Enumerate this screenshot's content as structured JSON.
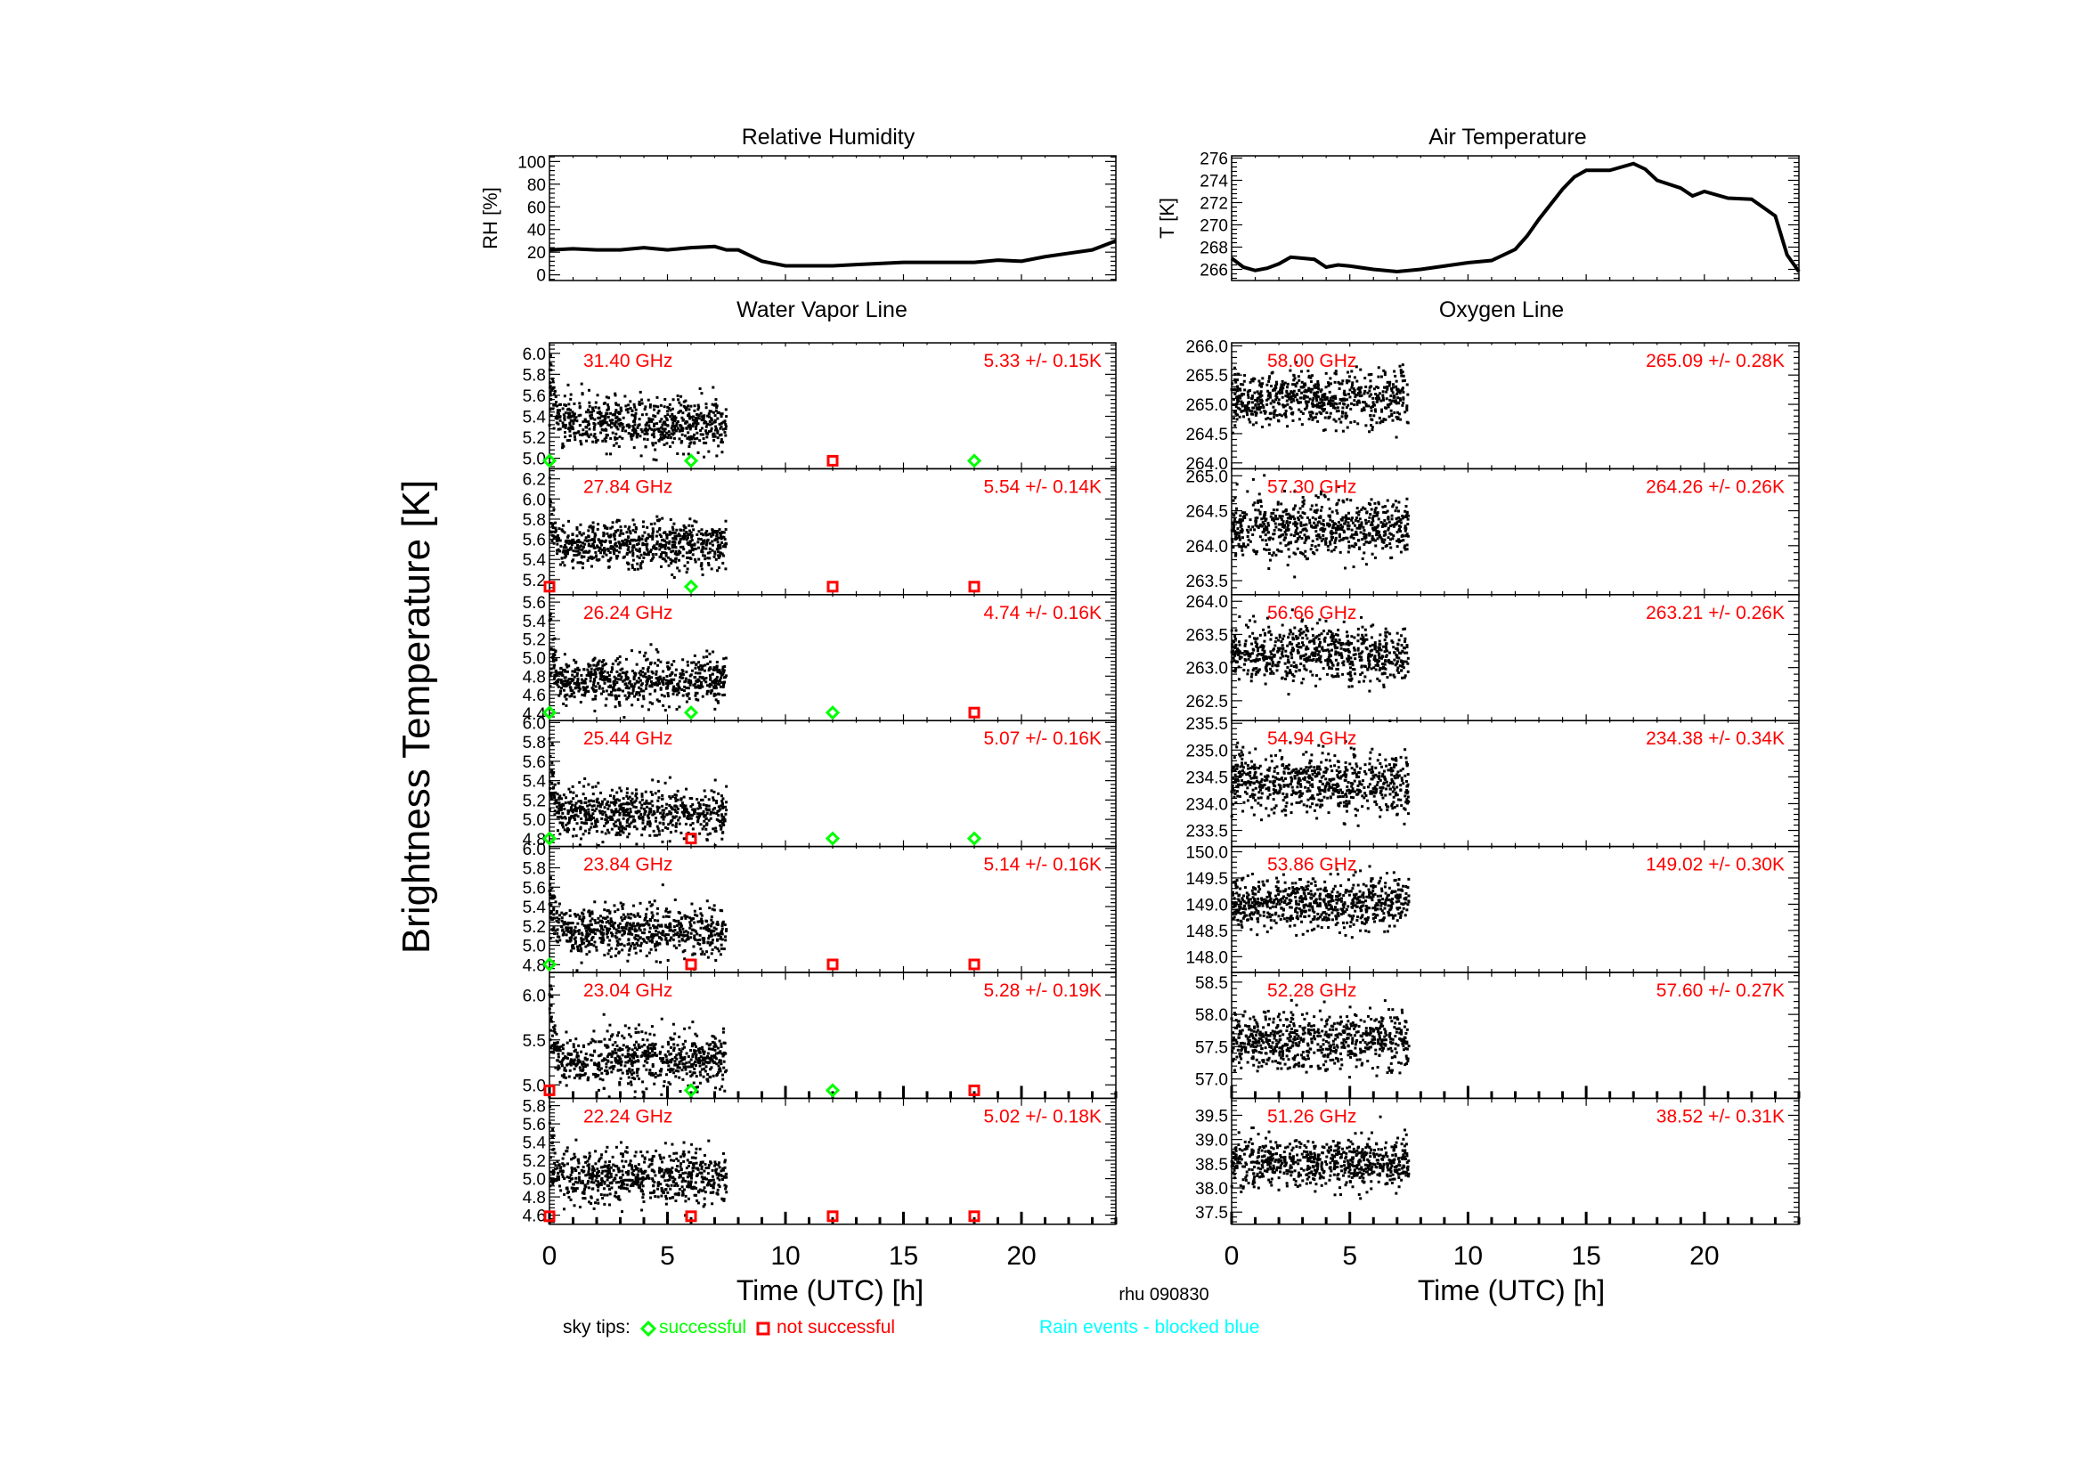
{
  "figure": {
    "ylabel_main": "Brightness Temperature [K]",
    "station_label": "rhu 090830",
    "legend": {
      "prefix": "sky tips:",
      "successful": "successful",
      "not_successful": "not successful",
      "rain": "Rain events - blocked blue"
    },
    "colors": {
      "text": "#000000",
      "annotation": "#ff0000",
      "success": "#00ff00",
      "fail": "#ff0000",
      "rain": "#00ffff",
      "points": "#000000"
    },
    "section_titles": {
      "left": "Water Vapor Line",
      "right": "Oxygen Line"
    }
  },
  "chart_data": [
    {
      "id": "rh",
      "type": "line",
      "title": "Relative Humidity",
      "ylabel": "RH [%]",
      "xlim": [
        0,
        24
      ],
      "ylim": [
        -5,
        105
      ],
      "yticks": [
        "0",
        "20",
        "40",
        "60",
        "80",
        "100"
      ],
      "ytick_values": [
        0,
        20,
        40,
        60,
        80,
        100
      ],
      "x": [
        0,
        1,
        2,
        3,
        4,
        5,
        6,
        7,
        7.5,
        8,
        9,
        10,
        11,
        12,
        13,
        14,
        15,
        16,
        17,
        18,
        19,
        20,
        21,
        22,
        23,
        24
      ],
      "values": [
        22,
        23,
        22,
        22,
        24,
        22,
        24,
        25,
        22,
        22,
        12,
        8,
        8,
        8,
        9,
        10,
        11,
        11,
        11,
        11,
        13,
        12,
        16,
        19,
        22,
        30
      ]
    },
    {
      "id": "temp",
      "type": "line",
      "title": "Air Temperature",
      "ylabel": "T [K]",
      "xlim": [
        0,
        24
      ],
      "ylim": [
        265,
        276.2
      ],
      "yticks": [
        "266",
        "268",
        "270",
        "272",
        "274",
        "276"
      ],
      "ytick_values": [
        266,
        268,
        270,
        272,
        274,
        276
      ],
      "x": [
        0,
        0.5,
        1,
        1.5,
        2,
        2.5,
        3,
        3.5,
        4,
        4.5,
        5,
        6,
        7,
        8,
        9,
        10,
        11,
        12,
        12.5,
        13,
        14,
        14.5,
        15,
        16,
        17,
        17.5,
        18,
        19,
        19.5,
        20,
        21,
        22,
        23,
        23.5,
        24
      ],
      "values": [
        267,
        266.2,
        265.9,
        266.1,
        266.5,
        267.1,
        267,
        266.9,
        266.2,
        266.4,
        266.3,
        266,
        265.8,
        266,
        266.3,
        266.6,
        266.8,
        267.8,
        269,
        270.5,
        273.2,
        274.3,
        274.9,
        274.9,
        275.5,
        275,
        274,
        273.3,
        272.6,
        273,
        272.4,
        272.3,
        270.8,
        267.3,
        265.8
      ]
    },
    {
      "id": "wv",
      "type": "scatter",
      "title": "Water Vapor Line",
      "xlabel": "Time (UTC) [h]",
      "xlim": [
        0,
        24
      ],
      "xticks": [
        "0",
        "5",
        "10",
        "15",
        "20"
      ],
      "xtick_values": [
        0,
        5,
        10,
        15,
        20
      ],
      "data_range_hours": [
        0,
        7.5
      ],
      "panels": [
        {
          "freq": "31.40 GHz",
          "stat": "5.33 +/-  0.15K",
          "mean": 5.33,
          "std": 0.15,
          "ylim": [
            4.9,
            6.1
          ],
          "yticks": [
            "5.0",
            "5.2",
            "5.4",
            "5.6",
            "5.8",
            "6.0"
          ],
          "ytick_values": [
            5.0,
            5.2,
            5.4,
            5.6,
            5.8,
            6.0
          ],
          "spike": 6.0,
          "skytips": [
            "success",
            "success",
            "fail",
            "success"
          ]
        },
        {
          "freq": "27.84 GHz",
          "stat": "5.54 +/-  0.14K",
          "mean": 5.54,
          "std": 0.14,
          "ylim": [
            5.05,
            6.3
          ],
          "yticks": [
            "5.2",
            "5.4",
            "5.6",
            "5.8",
            "6.0",
            "6.2"
          ],
          "ytick_values": [
            5.2,
            5.4,
            5.6,
            5.8,
            6.0,
            6.2
          ],
          "spike": 6.2,
          "skytips": [
            "fail",
            "success",
            "fail",
            "fail"
          ]
        },
        {
          "freq": "26.24 GHz",
          "stat": "4.74 +/-  0.16K",
          "mean": 4.74,
          "std": 0.16,
          "ylim": [
            4.32,
            5.68
          ],
          "yticks": [
            "4.4",
            "4.6",
            "4.8",
            "5.0",
            "5.2",
            "5.4",
            "5.6"
          ],
          "ytick_values": [
            4.4,
            4.6,
            4.8,
            5.0,
            5.2,
            5.4,
            5.6
          ],
          "spike": 5.6,
          "skytips": [
            "success",
            "success",
            "success",
            "fail"
          ]
        },
        {
          "freq": "25.44 GHz",
          "stat": "5.07 +/-  0.16K",
          "mean": 5.07,
          "std": 0.16,
          "ylim": [
            4.72,
            6.02
          ],
          "yticks": [
            "4.8",
            "5.0",
            "5.2",
            "5.4",
            "5.6",
            "5.8",
            "6.0"
          ],
          "ytick_values": [
            4.8,
            5.0,
            5.2,
            5.4,
            5.6,
            5.8,
            6.0
          ],
          "spike": 5.9,
          "skytips": [
            "success",
            "fail",
            "success",
            "success"
          ]
        },
        {
          "freq": "23.84 GHz",
          "stat": "5.14 +/-  0.16K",
          "mean": 5.14,
          "std": 0.16,
          "ylim": [
            4.72,
            6.02
          ],
          "yticks": [
            "4.8",
            "5.0",
            "5.2",
            "5.4",
            "5.6",
            "5.8",
            "6.0"
          ],
          "ytick_values": [
            4.8,
            5.0,
            5.2,
            5.4,
            5.6,
            5.8,
            6.0
          ],
          "spike": 5.9,
          "skytips": [
            "success",
            "fail",
            "fail",
            "fail"
          ]
        },
        {
          "freq": "23.04 GHz",
          "stat": "5.28 +/-  0.19K",
          "mean": 5.28,
          "std": 0.19,
          "ylim": [
            4.85,
            6.25
          ],
          "yticks": [
            "5.0",
            "5.5",
            "6.0"
          ],
          "ytick_values": [
            5.0,
            5.5,
            6.0
          ],
          "spike": 6.2,
          "skytips": [
            "fail",
            "success",
            "success",
            "fail"
          ]
        },
        {
          "freq": "22.24 GHz",
          "stat": "5.02 +/-  0.18K",
          "mean": 5.02,
          "std": 0.18,
          "ylim": [
            4.5,
            5.88
          ],
          "yticks": [
            "4.6",
            "4.8",
            "5.0",
            "5.2",
            "5.4",
            "5.6",
            "5.8"
          ],
          "ytick_values": [
            4.6,
            4.8,
            5.0,
            5.2,
            5.4,
            5.6,
            5.8
          ],
          "spike": 5.7,
          "skytips": [
            "fail",
            "fail",
            "fail",
            "fail"
          ]
        }
      ],
      "skytip_times": [
        0,
        6,
        12,
        18
      ]
    },
    {
      "id": "ox",
      "type": "scatter",
      "title": "Oxygen Line",
      "xlabel": "Time (UTC) [h]",
      "xlim": [
        0,
        24
      ],
      "xticks": [
        "0",
        "5",
        "10",
        "15",
        "20"
      ],
      "xtick_values": [
        0,
        5,
        10,
        15,
        20
      ],
      "data_range_hours": [
        0,
        7.5
      ],
      "panels": [
        {
          "freq": "58.00 GHz",
          "stat": "265.09 +/-  0.28K",
          "mean": 265.09,
          "std": 0.28,
          "ylim": [
            263.9,
            266.05
          ],
          "yticks": [
            "264.0",
            "264.5",
            "265.0",
            "265.5",
            "266.0"
          ],
          "ytick_values": [
            264.0,
            264.5,
            265.0,
            265.5,
            266.0
          ]
        },
        {
          "freq": "57.30 GHz",
          "stat": "264.26 +/-  0.26K",
          "mean": 264.26,
          "std": 0.26,
          "ylim": [
            263.3,
            265.1
          ],
          "yticks": [
            "263.5",
            "264.0",
            "264.5",
            "265.0"
          ],
          "ytick_values": [
            263.5,
            264.0,
            264.5,
            265.0
          ]
        },
        {
          "freq": "56.66 GHz",
          "stat": "263.21 +/-  0.26K",
          "mean": 263.21,
          "std": 0.26,
          "ylim": [
            262.2,
            264.1
          ],
          "yticks": [
            "262.5",
            "263.0",
            "263.5",
            "264.0"
          ],
          "ytick_values": [
            262.5,
            263.0,
            263.5,
            264.0
          ]
        },
        {
          "freq": "54.94 GHz",
          "stat": "234.38 +/-  0.34K",
          "mean": 234.38,
          "std": 0.34,
          "ylim": [
            233.2,
            235.55
          ],
          "yticks": [
            "233.5",
            "234.0",
            "234.5",
            "235.0",
            "235.5"
          ],
          "ytick_values": [
            233.5,
            234.0,
            234.5,
            235.0,
            235.5
          ]
        },
        {
          "freq": "53.86 GHz",
          "stat": "149.02 +/-  0.30K",
          "mean": 149.02,
          "std": 0.3,
          "ylim": [
            147.7,
            150.1
          ],
          "yticks": [
            "148.0",
            "148.5",
            "149.0",
            "149.5",
            "150.0"
          ],
          "ytick_values": [
            148.0,
            148.5,
            149.0,
            149.5,
            150.0
          ]
        },
        {
          "freq": "52.28 GHz",
          "stat": "57.60 +/-  0.27K",
          "mean": 57.6,
          "std": 0.27,
          "ylim": [
            56.7,
            58.65
          ],
          "yticks": [
            "57.0",
            "57.5",
            "58.0",
            "58.5"
          ],
          "ytick_values": [
            57.0,
            57.5,
            58.0,
            58.5
          ]
        },
        {
          "freq": "51.26 GHz",
          "stat": "38.52 +/-  0.31K",
          "mean": 38.52,
          "std": 0.31,
          "ylim": [
            37.25,
            39.85
          ],
          "yticks": [
            "37.5",
            "38.0",
            "38.5",
            "39.0",
            "39.5"
          ],
          "ytick_values": [
            37.5,
            38.0,
            38.5,
            39.0,
            39.5
          ]
        }
      ]
    }
  ]
}
